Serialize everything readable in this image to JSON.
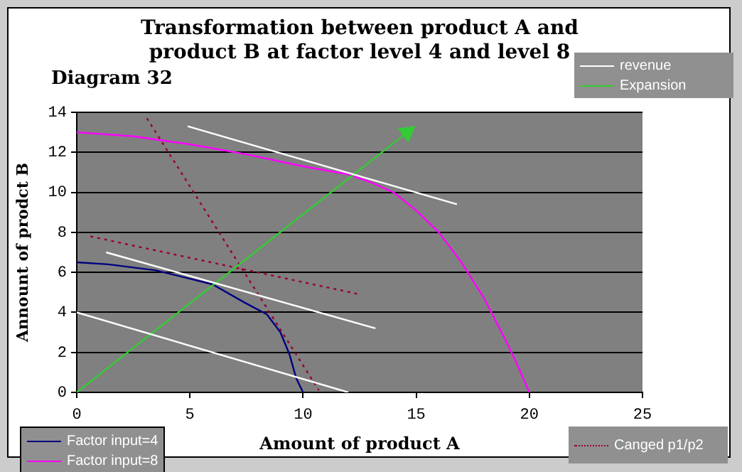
{
  "chart_data": {
    "type": "line",
    "title": "Transformation between product A and product B at factor level 4 and level 8",
    "subtitle": "Diagram 32",
    "xlabel": "Amount of product A",
    "ylabel": "Annount of prodct B",
    "xlim": [
      0,
      25
    ],
    "xticks": [
      0,
      5,
      10,
      15,
      20,
      25
    ],
    "ylim": [
      0,
      14
    ],
    "yticks": [
      0,
      2,
      4,
      6,
      8,
      10,
      12,
      14
    ],
    "grid": "y",
    "legend": "bottom right",
    "series": [
      {
        "name": "revenue",
        "color": "#ffffff",
        "x": [
          0,
          12,
          null,
          1.3,
          13.2,
          null,
          4.9,
          16.8
        ],
        "values": [
          4,
          0,
          null,
          7,
          3.2,
          null,
          13.3,
          9.4
        ]
      },
      {
        "name": "Expansion",
        "color": "#33cc33",
        "marker": "triangle",
        "x": [
          0,
          14.6
        ],
        "values": [
          0,
          13
        ]
      },
      {
        "name": "Factor input=4",
        "color": "#000080",
        "x": [
          0,
          1.4,
          3.5,
          6,
          7.4,
          8.4,
          9,
          9.4,
          9.7,
          10
        ],
        "values": [
          6.5,
          6.4,
          6.1,
          5.4,
          4.5,
          3.9,
          3,
          1.9,
          0.7,
          0
        ]
      },
      {
        "name": "Factor input=8",
        "color": "#ff00ff",
        "x": [
          0,
          2.5,
          5,
          7.5,
          10,
          12,
          13,
          14,
          15,
          16,
          17,
          18,
          19,
          19.5,
          20
        ],
        "values": [
          13,
          12.8,
          12.4,
          11.9,
          11.3,
          10.9,
          10.5,
          10,
          9.1,
          8,
          6.5,
          4.7,
          2.5,
          1.3,
          0
        ]
      },
      {
        "name": "Canged p1/p2",
        "color": "#990033",
        "line_style": "dotted",
        "x": [
          3.1,
          10.7,
          null,
          0.6,
          12.5
        ],
        "values": [
          13.7,
          0.1,
          null,
          7.8,
          4.9
        ]
      }
    ]
  }
}
